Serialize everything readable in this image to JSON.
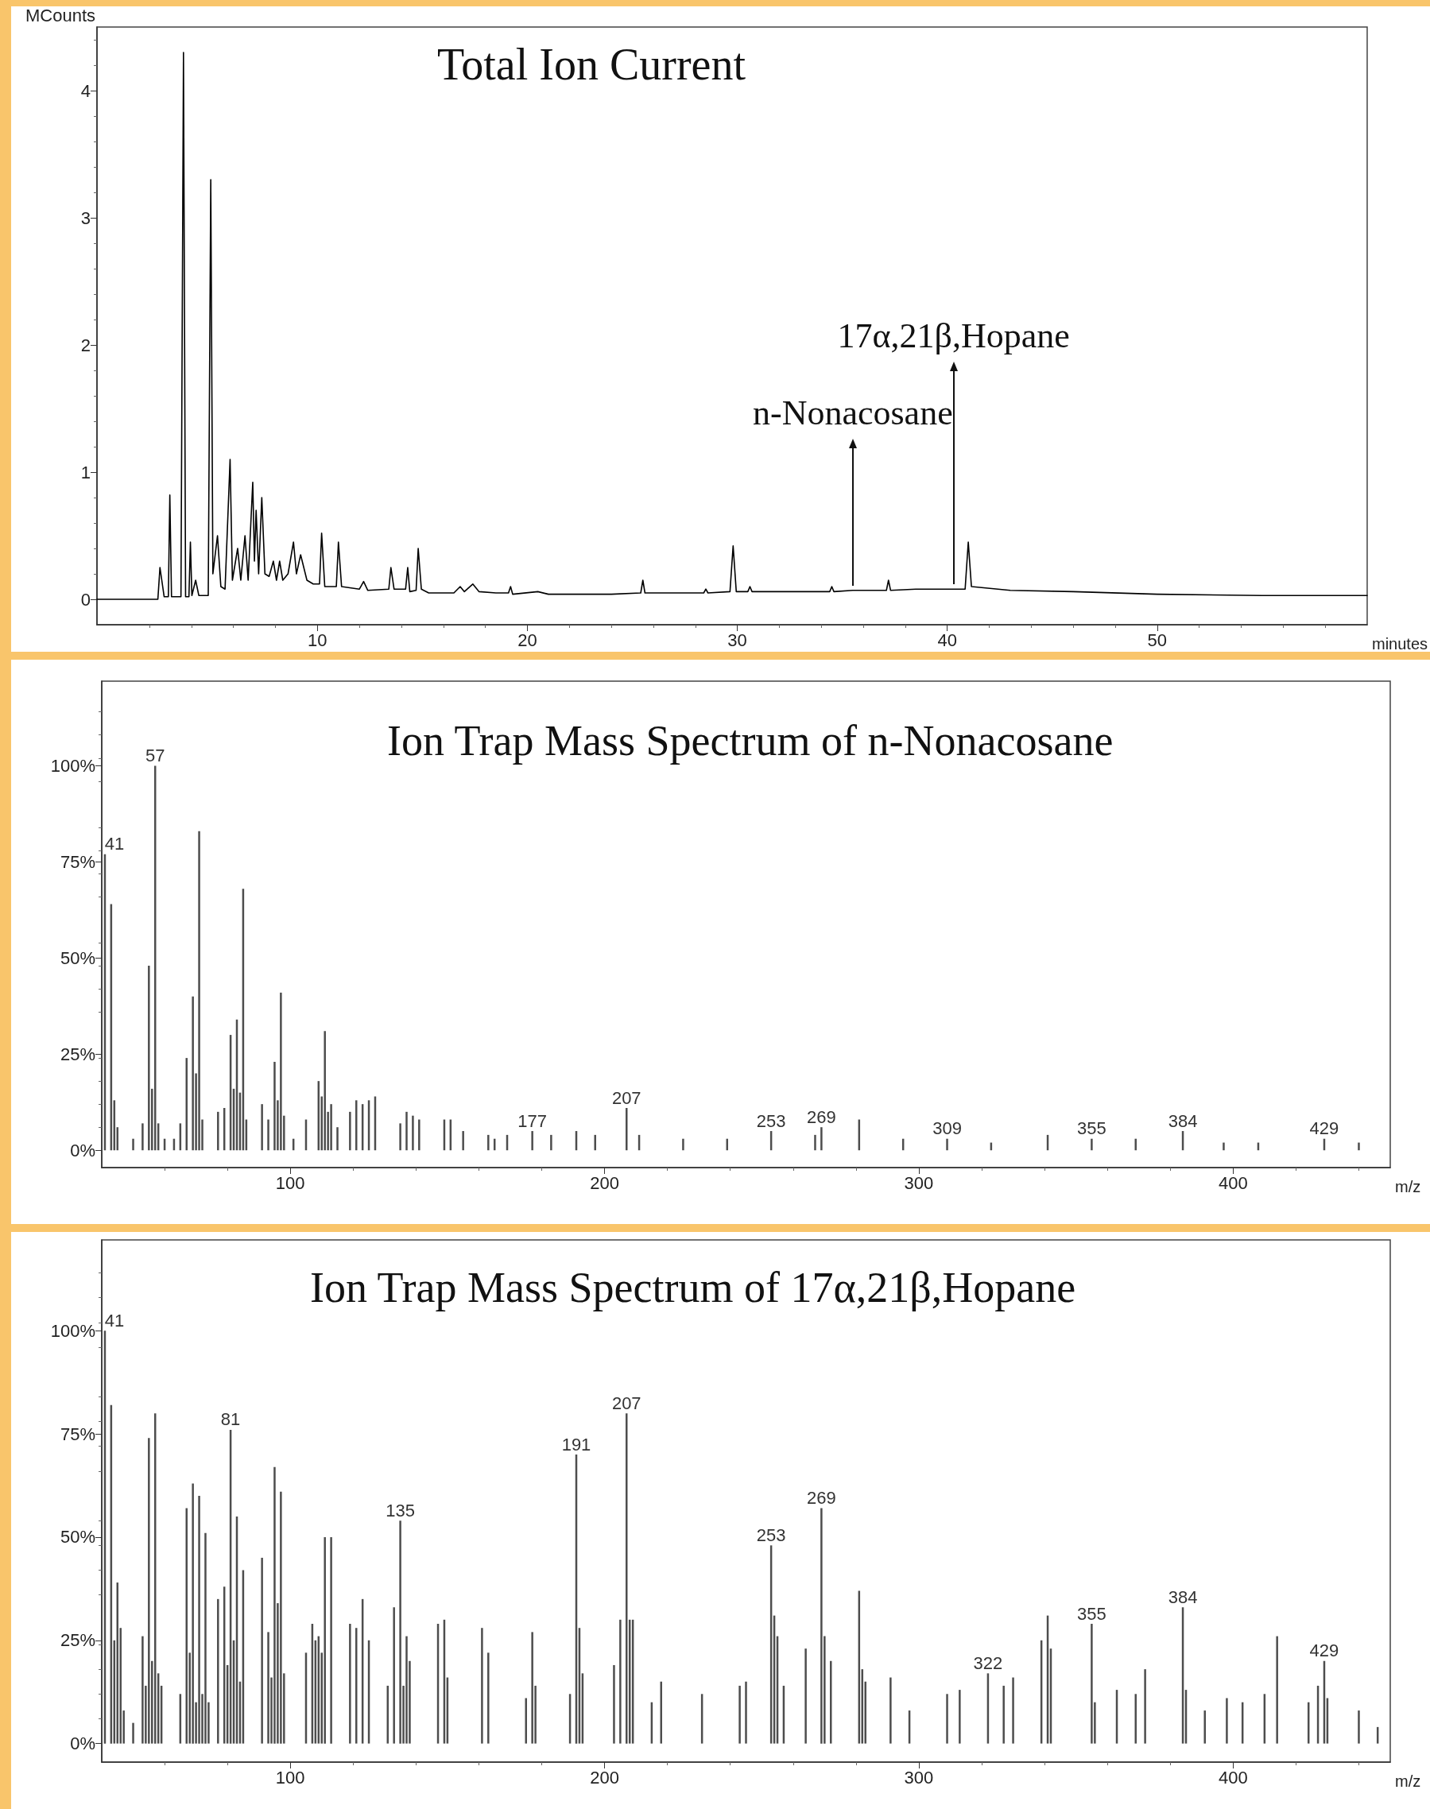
{
  "chart_data": [
    {
      "type": "line",
      "title": "Total Ion Current",
      "xlabel": "minutes",
      "ylabel": "MCounts",
      "marker": "none",
      "line_style": "solid",
      "xlim": [
        -0.5,
        60
      ],
      "xticks": [
        10,
        20,
        30,
        40,
        50
      ],
      "ylim": [
        -0.2,
        4.5
      ],
      "yticks": [
        0,
        1,
        2,
        3,
        4
      ],
      "x": [
        -0.5,
        2.4,
        2.5,
        2.7,
        2.9,
        2.97,
        3.05,
        3.5,
        3.62,
        3.72,
        3.88,
        3.95,
        4.02,
        4.2,
        4.35,
        4.8,
        4.92,
        5.02,
        5.24,
        5.4,
        5.6,
        5.84,
        5.95,
        6.2,
        6.35,
        6.55,
        6.7,
        6.92,
        7.0,
        7.08,
        7.2,
        7.35,
        7.5,
        7.7,
        7.9,
        8.05,
        8.2,
        8.35,
        8.6,
        8.86,
        9.0,
        9.2,
        9.5,
        9.8,
        10.1,
        10.2,
        10.35,
        10.9,
        11.0,
        11.15,
        12,
        12.2,
        12.4,
        13.4,
        13.5,
        13.65,
        14.2,
        14.3,
        14.4,
        14.7,
        14.8,
        14.95,
        15.3,
        16.5,
        16.8,
        17.0,
        17.4,
        17.7,
        18.5,
        19.1,
        19.2,
        19.3,
        20.5,
        21,
        24,
        25.4,
        25.5,
        25.6,
        27.5,
        28.4,
        28.5,
        28.6,
        29.65,
        29.8,
        29.95,
        30.5,
        30.6,
        30.7,
        33,
        34.4,
        34.5,
        34.6,
        35.5,
        36.5,
        37.1,
        37.2,
        37.3,
        38.5,
        40.3,
        40.85,
        41.0,
        41.15,
        43,
        46,
        50,
        55,
        60
      ],
      "series": [
        {
          "color": "#000000",
          "values": [
            0,
            0,
            0.25,
            0.02,
            0.02,
            0.82,
            0.02,
            0.02,
            4.3,
            0.02,
            0.02,
            0.45,
            0.03,
            0.15,
            0.03,
            0.03,
            3.3,
            0.2,
            0.5,
            0.1,
            0.08,
            1.1,
            0.15,
            0.4,
            0.15,
            0.5,
            0.15,
            0.92,
            0.3,
            0.7,
            0.2,
            0.8,
            0.2,
            0.18,
            0.3,
            0.15,
            0.3,
            0.15,
            0.2,
            0.45,
            0.2,
            0.35,
            0.15,
            0.12,
            0.12,
            0.52,
            0.1,
            0.1,
            0.45,
            0.1,
            0.08,
            0.14,
            0.07,
            0.08,
            0.25,
            0.08,
            0.08,
            0.25,
            0.06,
            0.07,
            0.4,
            0.08,
            0.05,
            0.05,
            0.1,
            0.06,
            0.12,
            0.06,
            0.05,
            0.05,
            0.1,
            0.04,
            0.06,
            0.04,
            0.04,
            0.05,
            0.15,
            0.05,
            0.05,
            0.05,
            0.08,
            0.05,
            0.06,
            0.42,
            0.06,
            0.06,
            0.1,
            0.06,
            0.06,
            0.06,
            0.1,
            0.06,
            0.07,
            0.07,
            0.07,
            0.15,
            0.07,
            0.08,
            0.08,
            0.08,
            0.45,
            0.1,
            0.07,
            0.06,
            0.04,
            0.03,
            0.03
          ]
        }
      ],
      "annotations": [
        {
          "text": "n-Nonacosane",
          "x": 35.5,
          "y": 0.07
        },
        {
          "text": "17α,21β,Hopane",
          "x": 40.3,
          "y": 0.08
        }
      ]
    },
    {
      "type": "bar",
      "title": "Ion Trap Mass Spectrum of n-Nonacosane",
      "xlabel": "m/z",
      "xlim": [
        40,
        450
      ],
      "xticks": [
        100,
        200,
        300,
        400
      ],
      "ylim": [
        -4.5,
        122
      ],
      "yticks": [
        {
          "value": 0,
          "label": "0%"
        },
        {
          "value": 25,
          "label": "25%"
        },
        {
          "value": 50,
          "label": "50%"
        },
        {
          "value": 75,
          "label": "75%"
        },
        {
          "value": 100,
          "label": "100%"
        }
      ],
      "x": [
        41,
        43,
        44,
        45,
        50,
        53,
        55,
        56,
        57,
        58,
        60,
        63,
        65,
        67,
        69,
        70,
        71,
        72,
        77,
        79,
        81,
        82,
        83,
        84,
        85,
        86,
        91,
        93,
        95,
        96,
        97,
        98,
        101,
        105,
        109,
        110,
        111,
        112,
        113,
        115,
        119,
        121,
        123,
        125,
        127,
        135,
        137,
        139,
        141,
        149,
        151,
        155,
        163,
        165,
        169,
        177,
        183,
        191,
        197,
        207,
        211,
        225,
        239,
        253,
        267,
        269,
        281,
        295,
        309,
        323,
        341,
        355,
        369,
        384,
        397,
        408,
        429,
        440
      ],
      "series": [
        {
          "color": "#4d4d4d",
          "values": [
            77,
            64,
            13,
            6,
            3,
            7,
            48,
            16,
            100,
            7,
            3,
            3,
            7,
            24,
            40,
            20,
            83,
            8,
            10,
            11,
            30,
            16,
            34,
            15,
            68,
            8,
            12,
            8,
            23,
            13,
            41,
            9,
            3,
            8,
            18,
            14,
            31,
            10,
            12,
            6,
            10,
            13,
            12,
            13,
            14,
            7,
            10,
            9,
            8,
            8,
            8,
            5,
            4,
            3,
            4,
            5,
            4,
            5,
            4,
            11,
            4,
            3,
            3,
            5,
            4,
            6,
            8,
            3,
            3,
            2,
            4,
            3,
            3,
            5,
            2,
            2,
            3,
            2
          ]
        }
      ],
      "annotations": [
        {
          "text": "41",
          "x": 41,
          "y": 77
        },
        {
          "text": "57",
          "x": 57,
          "y": 100
        },
        {
          "text": "177",
          "x": 177,
          "y": 5
        },
        {
          "text": "207",
          "x": 207,
          "y": 11
        },
        {
          "text": "253",
          "x": 253,
          "y": 5
        },
        {
          "text": "269",
          "x": 269,
          "y": 6
        },
        {
          "text": "309",
          "x": 309,
          "y": 3
        },
        {
          "text": "355",
          "x": 355,
          "y": 3
        },
        {
          "text": "384",
          "x": 384,
          "y": 5
        },
        {
          "text": "429",
          "x": 429,
          "y": 3
        }
      ]
    },
    {
      "type": "bar",
      "title": "Ion Trap Mass Spectrum of 17α,21β,Hopane",
      "xlabel": "m/z",
      "xlim": [
        40,
        450
      ],
      "xticks": [
        100,
        200,
        300,
        400
      ],
      "ylim": [
        -4.5,
        122
      ],
      "yticks": [
        {
          "value": 0,
          "label": "0%"
        },
        {
          "value": 25,
          "label": "25%"
        },
        {
          "value": 50,
          "label": "50%"
        },
        {
          "value": 75,
          "label": "75%"
        },
        {
          "value": 100,
          "label": "100%"
        }
      ],
      "x": [
        41,
        43,
        44,
        45,
        46,
        47,
        50,
        53,
        54,
        55,
        56,
        57,
        58,
        59,
        65,
        67,
        68,
        69,
        70,
        71,
        72,
        73,
        74,
        77,
        79,
        80,
        81,
        82,
        83,
        84,
        85,
        91,
        93,
        94,
        95,
        96,
        97,
        98,
        105,
        107,
        108,
        109,
        110,
        111,
        113,
        119,
        121,
        123,
        125,
        131,
        133,
        135,
        136,
        137,
        138,
        147,
        149,
        150,
        161,
        163,
        175,
        177,
        178,
        189,
        191,
        192,
        193,
        203,
        205,
        207,
        208,
        209,
        215,
        218,
        231,
        243,
        245,
        253,
        254,
        255,
        257,
        264,
        269,
        270,
        272,
        281,
        282,
        283,
        291,
        297,
        309,
        313,
        322,
        327,
        330,
        339,
        341,
        342,
        355,
        356,
        363,
        369,
        372,
        384,
        385,
        391,
        398,
        403,
        410,
        414,
        424,
        427,
        429,
        430,
        440,
        446
      ],
      "series": [
        {
          "color": "#4d4d4d",
          "values": [
            100,
            82,
            25,
            39,
            28,
            8,
            5,
            26,
            14,
            74,
            20,
            80,
            17,
            14,
            12,
            57,
            22,
            63,
            10,
            60,
            12,
            51,
            10,
            35,
            38,
            19,
            76,
            25,
            55,
            15,
            42,
            45,
            27,
            16,
            67,
            34,
            61,
            17,
            22,
            29,
            25,
            26,
            22,
            50,
            50,
            29,
            28,
            35,
            25,
            14,
            33,
            54,
            14,
            26,
            20,
            29,
            30,
            16,
            28,
            22,
            11,
            27,
            14,
            12,
            70,
            28,
            17,
            19,
            30,
            80,
            30,
            30,
            10,
            15,
            12,
            14,
            15,
            48,
            31,
            26,
            14,
            23,
            57,
            26,
            20,
            37,
            18,
            15,
            16,
            8,
            12,
            13,
            17,
            14,
            16,
            25,
            31,
            23,
            29,
            10,
            13,
            12,
            18,
            33,
            13,
            8,
            11,
            10,
            12,
            26,
            10,
            14,
            20,
            11,
            8,
            4
          ]
        }
      ],
      "annotations": [
        {
          "text": "41",
          "x": 41,
          "y": 100
        },
        {
          "text": "81",
          "x": 81,
          "y": 76
        },
        {
          "text": "135",
          "x": 135,
          "y": 54
        },
        {
          "text": "191",
          "x": 191,
          "y": 70
        },
        {
          "text": "207",
          "x": 207,
          "y": 80
        },
        {
          "text": "253",
          "x": 253,
          "y": 48
        },
        {
          "text": "269",
          "x": 269,
          "y": 57
        },
        {
          "text": "322",
          "x": 322,
          "y": 17
        },
        {
          "text": "355",
          "x": 355,
          "y": 29
        },
        {
          "text": "384",
          "x": 384,
          "y": 33
        },
        {
          "text": "429",
          "x": 429,
          "y": 20
        }
      ]
    }
  ]
}
